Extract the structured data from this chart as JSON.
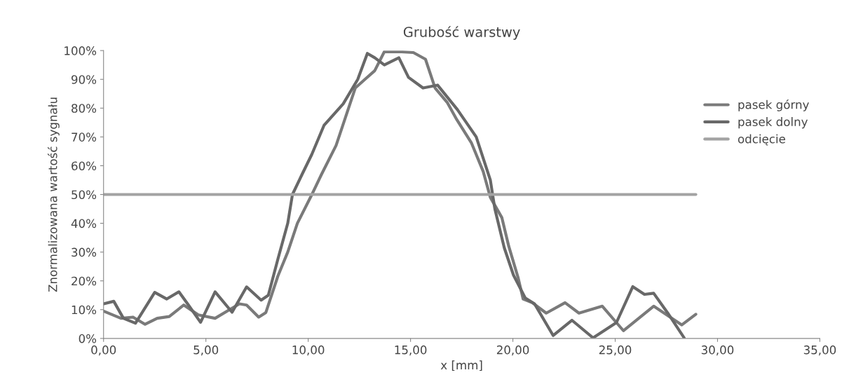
{
  "chart_data": {
    "type": "line",
    "title": "Grubość warstwy",
    "xlabel": "x [mm]",
    "ylabel": "Znormalizowana wartość sygnału",
    "xlim": [
      0,
      35
    ],
    "xticks": [
      {
        "value": 0,
        "label": "0,00"
      },
      {
        "value": 5,
        "label": "5,00"
      },
      {
        "value": 10,
        "label": "10,00"
      },
      {
        "value": 15,
        "label": "15,00"
      },
      {
        "value": 20,
        "label": "20,00"
      },
      {
        "value": 25,
        "label": "25,00"
      },
      {
        "value": 30,
        "label": "30,00"
      },
      {
        "value": 35,
        "label": "35,00"
      }
    ],
    "ylim": [
      0,
      100
    ],
    "yticks": [
      {
        "value": 0,
        "label": "0%"
      },
      {
        "value": 10,
        "label": "10%"
      },
      {
        "value": 20,
        "label": "20%"
      },
      {
        "value": 30,
        "label": "30%"
      },
      {
        "value": 40,
        "label": "40%"
      },
      {
        "value": 50,
        "label": "50%"
      },
      {
        "value": 60,
        "label": "60%"
      },
      {
        "value": 70,
        "label": "70%"
      },
      {
        "value": 80,
        "label": "80%"
      },
      {
        "value": 90,
        "label": "90%"
      },
      {
        "value": 100,
        "label": "100%"
      }
    ],
    "grid": false,
    "legend": "right",
    "marker": "none",
    "line_style": "solid",
    "series": [
      {
        "name": "pasek górny",
        "color": "#7a7a7a",
        "x": [
          0,
          0.85,
          1.44,
          2.03,
          2.62,
          3.21,
          3.92,
          4.63,
          5.45,
          6.16,
          6.64,
          6.99,
          7.58,
          7.93,
          8.52,
          9.0,
          9.47,
          10.18,
          10.65,
          11.36,
          11.83,
          12.3,
          12.77,
          13.25,
          13.72,
          14.43,
          15.14,
          15.73,
          16.2,
          16.79,
          17.26,
          17.97,
          18.55,
          18.9,
          19.46,
          19.8,
          20.26,
          20.5,
          20.95,
          21.63,
          22.55,
          23.23,
          24.37,
          25.06,
          25.4,
          26.88,
          28.25,
          28.94
        ],
        "values": [
          9.5,
          7,
          7.4,
          4.9,
          7,
          7.6,
          11.6,
          8.2,
          7,
          10,
          12,
          11.6,
          7.4,
          9,
          21.7,
          30,
          40,
          50,
          57,
          67,
          77,
          87,
          90,
          93,
          99.6,
          99.6,
          99.3,
          97,
          87,
          82,
          76,
          68,
          58,
          49,
          42,
          32,
          21,
          13.7,
          12.4,
          8.8,
          12.4,
          8.8,
          11.2,
          5.5,
          2.7,
          11.2,
          4.7,
          8.4
        ]
      },
      {
        "name": "pasek dolny",
        "color": "#686868",
        "x": [
          0,
          0.5,
          0.97,
          1.56,
          2.5,
          3.09,
          3.68,
          4.15,
          4.74,
          5.45,
          6.28,
          6.99,
          7.7,
          8.05,
          8.52,
          9.0,
          9.23,
          9.7,
          10.18,
          10.77,
          11.71,
          12.42,
          12.89,
          13.25,
          13.72,
          14.43,
          14.9,
          15.61,
          16.32,
          17.29,
          18.21,
          18.9,
          19.12,
          19.58,
          20.03,
          20.61,
          21.06,
          21.97,
          22.89,
          23.92,
          25.06,
          25.86,
          26.43,
          26.88,
          27.57,
          28.37
        ],
        "values": [
          12,
          12.9,
          7,
          5.3,
          16,
          13.7,
          16.2,
          11.6,
          5.6,
          16.2,
          9.1,
          17.9,
          13.3,
          15,
          27.6,
          40,
          50,
          57,
          64,
          74,
          81.5,
          90,
          99,
          97.5,
          95,
          97.5,
          90.7,
          87,
          88,
          79.5,
          70,
          55,
          45,
          31.5,
          22,
          14,
          12,
          1,
          6.3,
          0.2,
          5.5,
          18,
          15.3,
          15.7,
          8.8,
          0.2
        ]
      },
      {
        "name": "odcięcie",
        "color": "#a3a3a3",
        "x": [
          0,
          28.94
        ],
        "values": [
          50,
          50
        ]
      }
    ]
  }
}
